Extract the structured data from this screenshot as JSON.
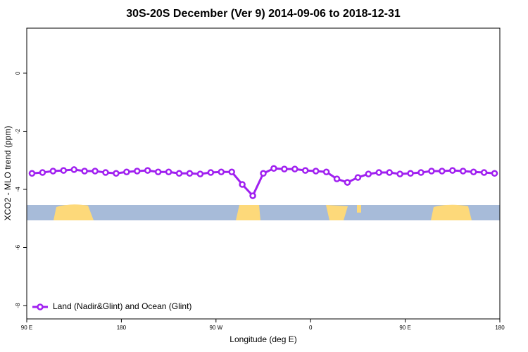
{
  "chart_data": {
    "type": "line",
    "title": "30S-20S December (Ver 9)   2014-09-06 to 2018-12-31",
    "x_label": "Longitude (deg E)",
    "y_label": "XCO2 - MLO trend (ppm)",
    "x": [
      95,
      105,
      115,
      125,
      135,
      145,
      155,
      165,
      175,
      185,
      195,
      205,
      215,
      225,
      235,
      245,
      255,
      265,
      275,
      285,
      295,
      305,
      315,
      325,
      335,
      345,
      355,
      365,
      375,
      385,
      395,
      405,
      415,
      425,
      435,
      445,
      455,
      465,
      475,
      485,
      495,
      505,
      515,
      525,
      535
    ],
    "series": [
      {
        "name": "Land (Nadir&Glint) and Ocean (Glint)",
        "color": "#a020f0",
        "values": [
          -3.45,
          -3.42,
          -3.37,
          -3.35,
          -3.32,
          -3.37,
          -3.37,
          -3.42,
          -3.45,
          -3.4,
          -3.37,
          -3.35,
          -3.4,
          -3.4,
          -3.45,
          -3.45,
          -3.47,
          -3.42,
          -3.4,
          -3.4,
          -3.83,
          -4.22,
          -3.45,
          -3.28,
          -3.3,
          -3.3,
          -3.35,
          -3.37,
          -3.4,
          -3.64,
          -3.76,
          -3.59,
          -3.47,
          -3.42,
          -3.42,
          -3.47,
          -3.45,
          -3.42,
          -3.37,
          -3.37,
          -3.35,
          -3.37,
          -3.4,
          -3.42,
          -3.45
        ]
      }
    ],
    "xlim": [
      90,
      540
    ],
    "xticks": [
      {
        "value": 90,
        "label": "90 E"
      },
      180,
      {
        "value": 270,
        "label": "90 W"
      },
      {
        "value": 360,
        "label": "0"
      },
      {
        "value": 450,
        "label": "90 E"
      },
      180
    ],
    "ylim": [
      -8.46,
      1.55
    ],
    "yticks": [
      0,
      -2,
      -4,
      -6,
      -8
    ],
    "legend": "bottom-left"
  }
}
